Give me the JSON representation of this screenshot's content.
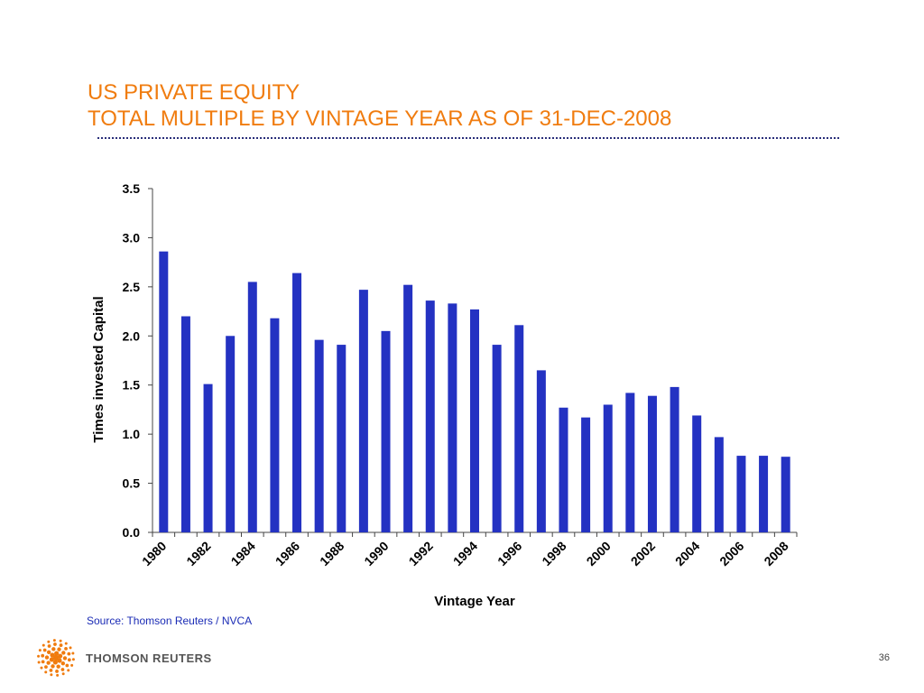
{
  "slide": {
    "title_line1": "US PRIVATE EQUITY",
    "title_line2": "TOTAL MULTIPLE BY VINTAGE YEAR AS OF 31-DEC-2008",
    "source": "Source: Thomson Reuters / NVCA",
    "page_number": "36",
    "logo_text": "THOMSON REUTERS"
  },
  "colors": {
    "title": "#f07c0f",
    "bar": "#2432c2",
    "source_text": "#1a2bb5",
    "logo": "#f07c0f"
  },
  "icons": {
    "logo": "thomson-reuters-dot-sphere-icon"
  },
  "chart_data": {
    "type": "bar",
    "categories": [
      "1980",
      "1981",
      "1982",
      "1983",
      "1984",
      "1985",
      "1986",
      "1987",
      "1988",
      "1989",
      "1990",
      "1991",
      "1992",
      "1993",
      "1994",
      "1995",
      "1996",
      "1997",
      "1998",
      "1999",
      "2000",
      "2001",
      "2002",
      "2003",
      "2004",
      "2005",
      "2006",
      "2007",
      "2008"
    ],
    "tick_labels": [
      "1980",
      "",
      "1982",
      "",
      "1984",
      "",
      "1986",
      "",
      "1988",
      "",
      "1990",
      "",
      "1992",
      "",
      "1994",
      "",
      "1996",
      "",
      "1998",
      "",
      "2000",
      "",
      "2002",
      "",
      "2004",
      "",
      "2006",
      "",
      "2008"
    ],
    "values": [
      2.86,
      2.2,
      1.51,
      2.0,
      2.55,
      2.18,
      2.64,
      1.96,
      1.91,
      2.47,
      2.05,
      2.52,
      2.36,
      2.33,
      2.27,
      1.91,
      2.11,
      1.65,
      1.27,
      1.17,
      1.3,
      1.42,
      1.39,
      1.48,
      1.19,
      0.97,
      0.78,
      0.78,
      0.77
    ],
    "xlabel": "Vintage Year",
    "ylabel": "Times invested Capital",
    "ylim": [
      0,
      3.5
    ],
    "yticks": [
      "0.0",
      "0.5",
      "1.0",
      "1.5",
      "2.0",
      "2.5",
      "3.0",
      "3.5"
    ],
    "grid": false,
    "legend": "none"
  }
}
